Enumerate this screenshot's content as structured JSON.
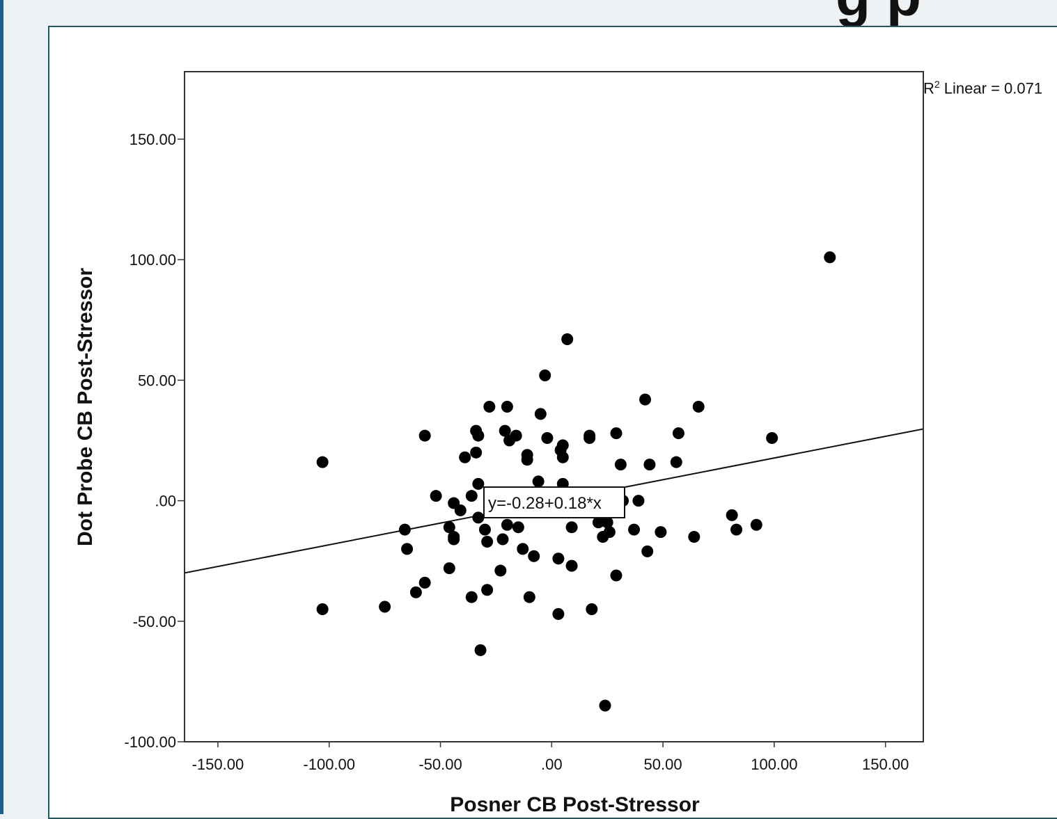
{
  "header_fragment": "g p",
  "chart_data": {
    "type": "scatter",
    "xlabel": "Posner CB Post-Stressor",
    "ylabel": "Dot Probe CB Post-Stressor",
    "xlim": [
      -165,
      167
    ],
    "ylim": [
      -100,
      178
    ],
    "x_ticks": [
      -150,
      -100,
      -50,
      0,
      50,
      100,
      150
    ],
    "x_tick_labels": [
      "-150.00",
      "-100.00",
      "-50.00",
      ".00",
      "50.00",
      "100.00",
      "150.00"
    ],
    "y_ticks": [
      -100,
      -50,
      0,
      50,
      100,
      150
    ],
    "y_tick_labels": [
      "-100.00",
      "-50.00",
      ".00",
      "50.00",
      "100.00",
      "150.00"
    ],
    "grid": false,
    "point_color": "#000000",
    "points": [
      [
        -103,
        16
      ],
      [
        -103,
        -45
      ],
      [
        -75,
        -44
      ],
      [
        -66,
        -12
      ],
      [
        -65,
        -20
      ],
      [
        -61,
        -38
      ],
      [
        -57,
        27
      ],
      [
        -57,
        -34
      ],
      [
        -52,
        2
      ],
      [
        -46,
        -11
      ],
      [
        -46,
        -28
      ],
      [
        -44,
        -1
      ],
      [
        -44,
        -15
      ],
      [
        -44,
        -16
      ],
      [
        -41,
        -4
      ],
      [
        -39,
        18
      ],
      [
        -36,
        2
      ],
      [
        -36,
        -40
      ],
      [
        -34,
        20
      ],
      [
        -34,
        29
      ],
      [
        -33,
        27
      ],
      [
        -33,
        7
      ],
      [
        -33,
        -7
      ],
      [
        -32,
        -62
      ],
      [
        -30,
        -12
      ],
      [
        -29,
        -17
      ],
      [
        -29,
        -37
      ],
      [
        -28,
        39
      ],
      [
        -23,
        -29
      ],
      [
        -22,
        -16
      ],
      [
        -21,
        29
      ],
      [
        -20,
        39
      ],
      [
        -20,
        -10
      ],
      [
        -19,
        25
      ],
      [
        -16,
        27
      ],
      [
        -15,
        -11
      ],
      [
        -13,
        -20
      ],
      [
        -11,
        19
      ],
      [
        -11,
        17
      ],
      [
        -10,
        -40
      ],
      [
        -8,
        -23
      ],
      [
        -6,
        8
      ],
      [
        -5,
        36
      ],
      [
        -3,
        52
      ],
      [
        -2,
        26
      ],
      [
        3,
        -24
      ],
      [
        3,
        -47
      ],
      [
        4,
        21
      ],
      [
        5,
        23
      ],
      [
        5,
        18
      ],
      [
        5,
        7
      ],
      [
        7,
        67
      ],
      [
        9,
        -27
      ],
      [
        9,
        -11
      ],
      [
        17,
        27
      ],
      [
        17,
        26
      ],
      [
        18,
        -45
      ],
      [
        21,
        -9
      ],
      [
        23,
        -15
      ],
      [
        24,
        -85
      ],
      [
        25,
        -9
      ],
      [
        26,
        -13
      ],
      [
        29,
        28
      ],
      [
        29,
        -31
      ],
      [
        31,
        15
      ],
      [
        32,
        0
      ],
      [
        37,
        -12
      ],
      [
        39,
        0
      ],
      [
        42,
        42
      ],
      [
        43,
        -21
      ],
      [
        44,
        15
      ],
      [
        49,
        -13
      ],
      [
        56,
        16
      ],
      [
        57,
        28
      ],
      [
        64,
        -15
      ],
      [
        66,
        39
      ],
      [
        81,
        -6
      ],
      [
        83,
        -12
      ],
      [
        92,
        -10
      ],
      [
        99,
        26
      ],
      [
        125,
        101
      ]
    ],
    "regression": {
      "intercept": -0.28,
      "slope": 0.18,
      "equation_label": "y=-0.28+0.18*x",
      "r2_prefix": "R",
      "r2_exponent": "2",
      "r2_text": " Linear = 0.071"
    }
  }
}
